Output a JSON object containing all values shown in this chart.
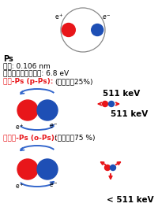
{
  "bg_color": "#ffffff",
  "pos_color": "#e8161a",
  "ele_color": "#1e4fb5",
  "red_color": "#e8161a",
  "blue_arrow_color": "#3366cc",
  "black_color": "#000000",
  "gray_color": "#888888",
  "ps_line1": "Ps",
  "ps_line2": "半径: 0.106 nm",
  "ps_line3": "イオン化エネルギー: 6.8 eV",
  "para_line1a": "パラ-Ps (p-Ps):",
  "para_line1b": "(形成確祗25%)",
  "para_kev1": "511 keV",
  "para_kev2": "511 keV",
  "ortho_line1a": "オルト-Ps (o-Ps):",
  "ortho_line1b": "(形成確祗75 %)",
  "ortho_kev": "< 511 keV"
}
